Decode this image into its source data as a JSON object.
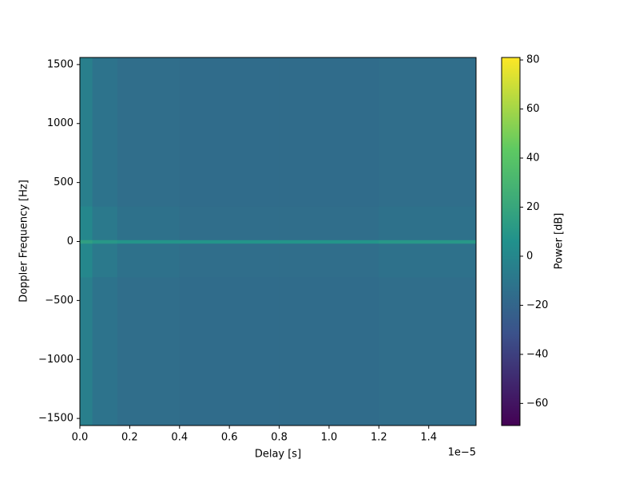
{
  "chart_data": {
    "type": "heatmap",
    "x_label": "Delay [s]",
    "y_label": "Doppler Frequency [Hz]",
    "colorbar_label": "Power [dB]",
    "x_offset_label": "1e−5",
    "colormap": "viridis",
    "xlim": [
      0,
      1.59e-05
    ],
    "ylim": [
      -1560,
      1560
    ],
    "clim": [
      -69,
      81
    ],
    "xticks": [
      {
        "value": 0,
        "label": "0.0"
      },
      {
        "value": 2e-06,
        "label": "0.2"
      },
      {
        "value": 4e-06,
        "label": "0.4"
      },
      {
        "value": 6e-06,
        "label": "0.6"
      },
      {
        "value": 8e-06,
        "label": "0.8"
      },
      {
        "value": 1e-05,
        "label": "1.0"
      },
      {
        "value": 1.2e-05,
        "label": "1.2"
      },
      {
        "value": 1.4e-05,
        "label": "1.4"
      }
    ],
    "yticks": [
      {
        "value": -1500,
        "label": "−1500"
      },
      {
        "value": -1000,
        "label": "−1000"
      },
      {
        "value": -500,
        "label": "−500"
      },
      0,
      500,
      1000,
      1500
    ],
    "cticks": [
      {
        "value": -60,
        "label": "−60"
      },
      {
        "value": -40,
        "label": "−40"
      },
      {
        "value": -20,
        "label": "−20"
      },
      0,
      20,
      40,
      60,
      80
    ],
    "x_edges": [
      0,
      5e-07,
      1.5e-06,
      4e-06,
      8e-06,
      1.2e-05,
      1.59e-05
    ],
    "y_edges": [
      -1560,
      -300,
      -15,
      15,
      300,
      1560
    ],
    "z": [
      [
        -5,
        -12,
        -15,
        -16,
        -16,
        -15
      ],
      [
        0,
        -8,
        -13,
        -15,
        -15,
        -13
      ],
      [
        15,
        10,
        8,
        8,
        8,
        10
      ],
      [
        0,
        -8,
        -13,
        -15,
        -15,
        -13
      ],
      [
        -5,
        -12,
        -15,
        -16,
        -16,
        -15
      ]
    ]
  }
}
